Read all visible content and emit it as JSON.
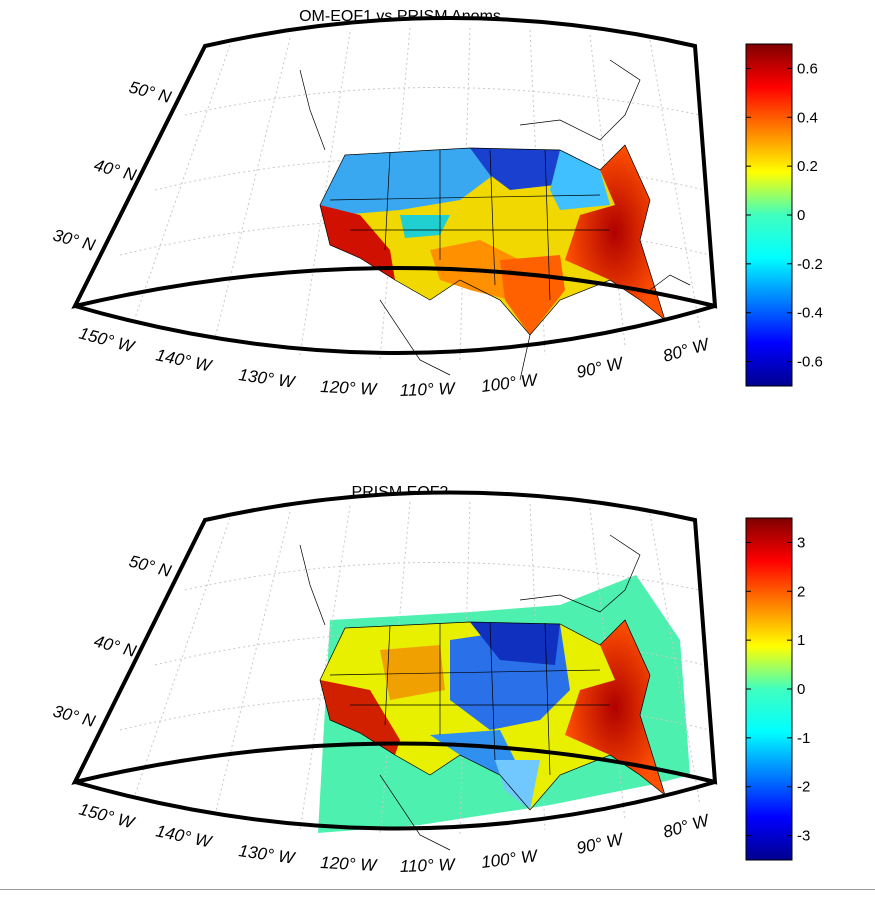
{
  "panels": [
    {
      "title": "OM-EOF1 vs PRISM Anoms",
      "colorbar": {
        "ticks": [
          "0.6",
          "0.4",
          "0.2",
          "0",
          "-0.2",
          "-0.4",
          "-0.6"
        ],
        "min": -0.7,
        "max": 0.7
      }
    },
    {
      "title": "PRISM EOF3",
      "colorbar": {
        "ticks": [
          "3",
          "2",
          "1",
          "0",
          "-1",
          "-2",
          "-3"
        ],
        "min": -3.5,
        "max": 3.5
      }
    }
  ],
  "lat_labels": [
    "50° N",
    "40° N",
    "30° N"
  ],
  "lon_labels": [
    "150° W",
    "140° W",
    "130° W",
    "120° W",
    "110° W",
    "100° W",
    "90° W",
    "80° W"
  ],
  "colors": {
    "colormap": "jet",
    "ocean_fill_panel2": "#4ef0b0",
    "frame": "#000000"
  }
}
